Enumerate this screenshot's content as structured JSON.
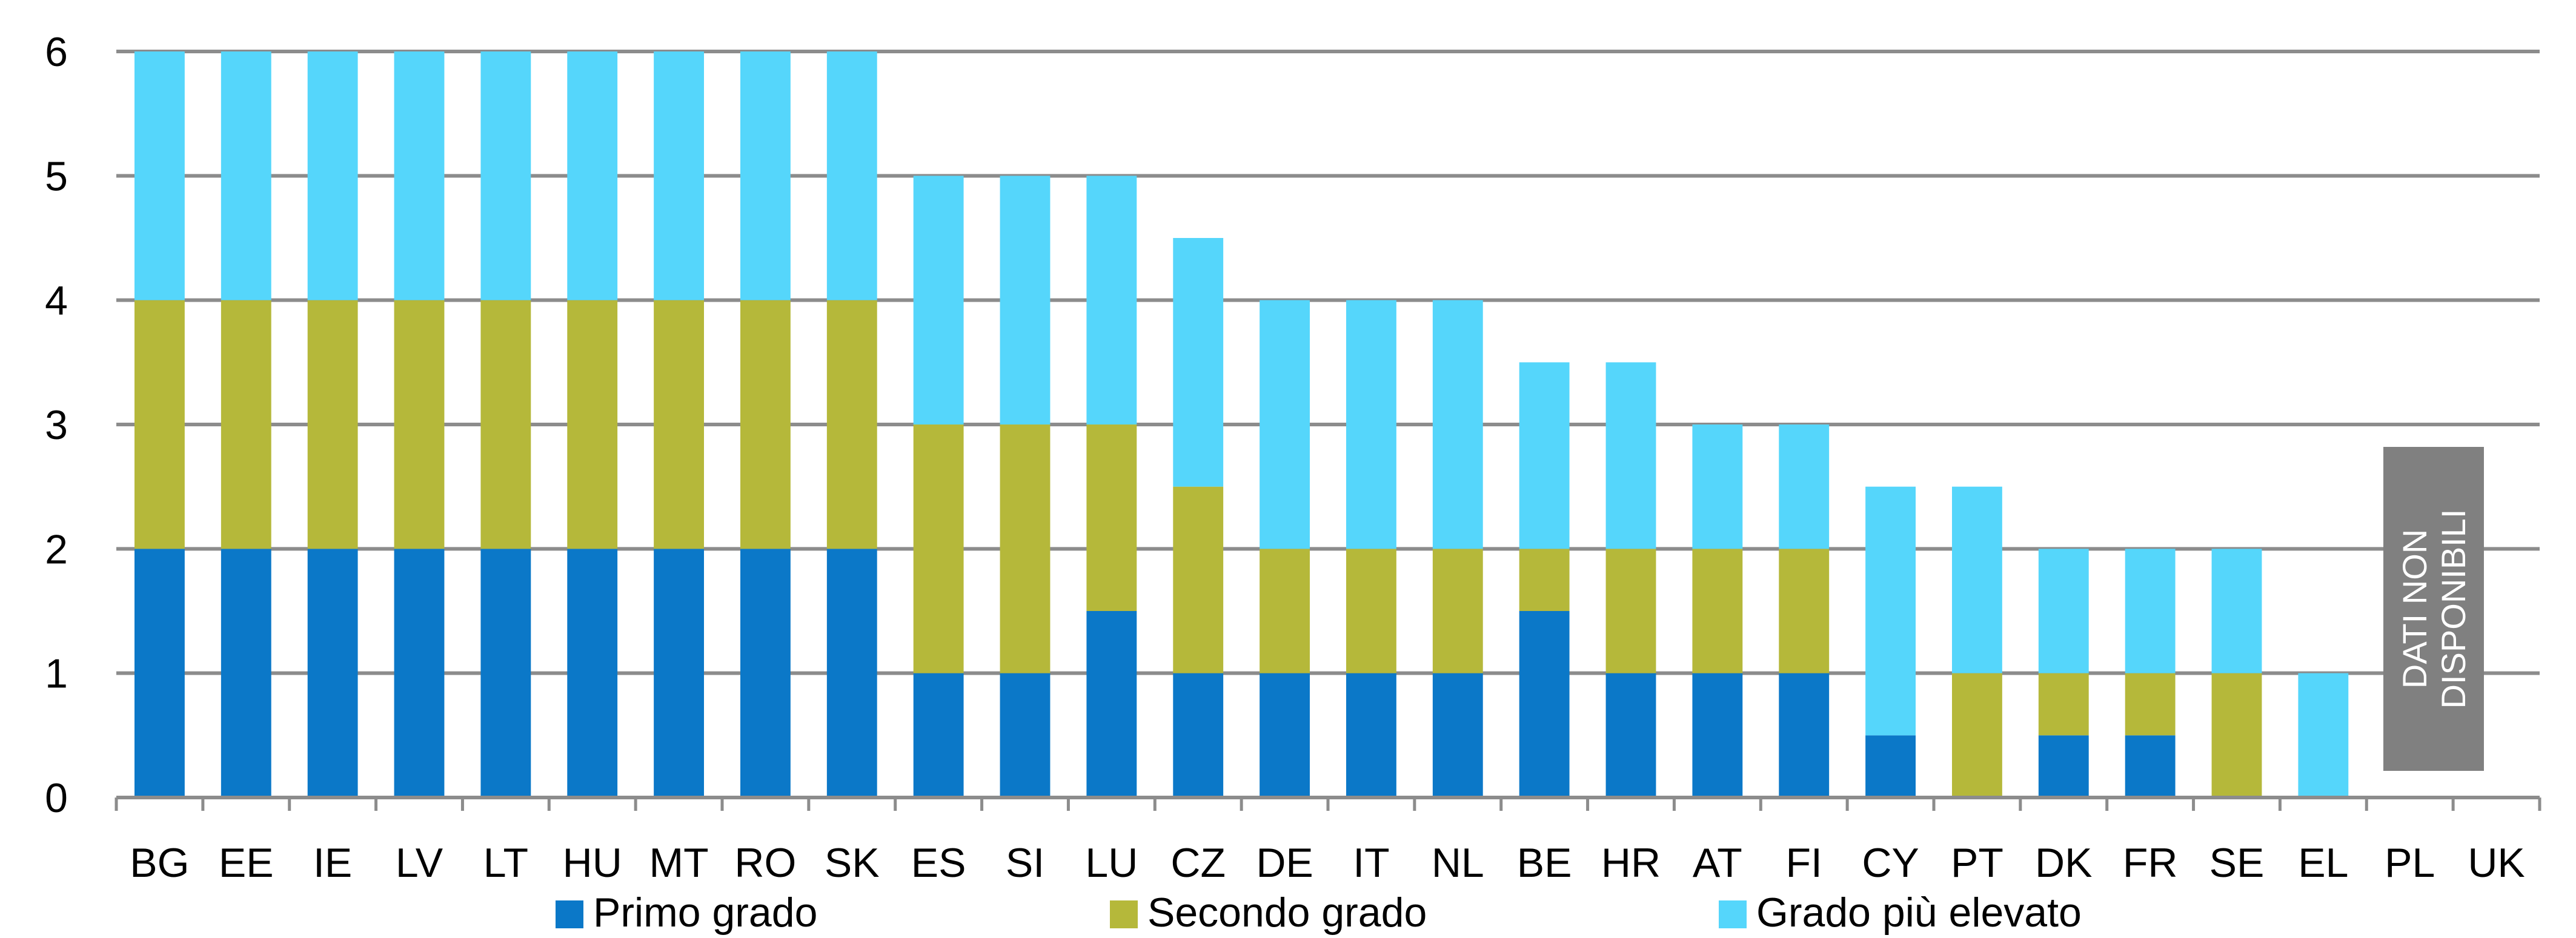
{
  "chart_data": {
    "type": "bar",
    "stacked": true,
    "categories": [
      "BG",
      "EE",
      "IE",
      "LV",
      "LT",
      "HU",
      "MT",
      "RO",
      "SK",
      "ES",
      "SI",
      "LU",
      "CZ",
      "DE",
      "IT",
      "NL",
      "BE",
      "HR",
      "AT",
      "FI",
      "CY",
      "PT",
      "DK",
      "FR",
      "SE",
      "EL",
      "PL",
      "UK"
    ],
    "series": [
      {
        "name": "Primo grado",
        "color": "#0b78c8",
        "values": [
          2,
          2,
          2,
          2,
          2,
          2,
          2,
          2,
          2,
          1,
          1,
          1.5,
          1,
          1,
          1,
          1,
          1.5,
          1,
          1,
          1,
          0.5,
          0,
          0.5,
          0.5,
          0,
          0,
          null,
          null
        ]
      },
      {
        "name": "Secondo grado",
        "color": "#b5b83a",
        "values": [
          2,
          2,
          2,
          2,
          2,
          2,
          2,
          2,
          2,
          2,
          2,
          1.5,
          1.5,
          1,
          1,
          1,
          0.5,
          1,
          1,
          1,
          0,
          1,
          0.5,
          0.5,
          1,
          0,
          null,
          null
        ]
      },
      {
        "name": "Grado più elevato",
        "color": "#55d6fb",
        "values": [
          2,
          2,
          2,
          2,
          2,
          2,
          2,
          2,
          2,
          2,
          2,
          2,
          2,
          2,
          2,
          2,
          1.5,
          1.5,
          1,
          1,
          2,
          1.5,
          1,
          1,
          1,
          1,
          null,
          null
        ]
      }
    ],
    "ylim": [
      0,
      6
    ],
    "yticks": [
      0,
      1,
      2,
      3,
      4,
      5,
      6
    ],
    "grid": true,
    "legend": "bottom",
    "annotation": {
      "lines": [
        "DATI NON",
        "DISPONIBILI"
      ],
      "categories": [
        "PL",
        "UK"
      ],
      "color": "#808080"
    },
    "title": "",
    "xlabel": "",
    "ylabel": ""
  }
}
